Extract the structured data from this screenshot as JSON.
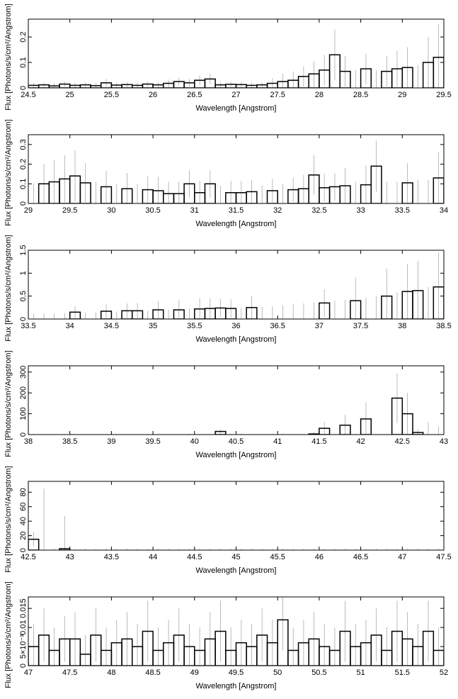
{
  "chart_data": [
    {
      "type": "histogram",
      "xlabel": "Wavelength [Angstrom]",
      "ylabel": "Flux [Photons/s/cm²/Angstrom]",
      "xlim": [
        24.5,
        29.5
      ],
      "xticks": [
        24.5,
        25,
        25.5,
        26,
        26.5,
        27,
        27.5,
        28,
        28.5,
        29,
        29.5
      ],
      "ylim": [
        0,
        0.27
      ],
      "yticks": [
        0,
        0.1,
        0.2
      ],
      "bins": [
        24.5,
        24.625,
        24.75,
        24.875,
        25,
        25.125,
        25.25,
        25.375,
        25.5,
        25.625,
        25.75,
        25.875,
        26,
        26.125,
        26.25,
        26.375,
        26.5,
        26.625,
        26.75,
        26.875,
        27,
        27.125,
        27.25,
        27.375,
        27.5,
        27.625,
        27.75,
        27.875,
        28,
        28.125,
        28.25,
        28.375,
        28.5,
        28.625,
        28.75,
        28.875,
        29,
        29.125,
        29.25,
        29.375,
        29.5
      ],
      "values": [
        0.01,
        0.012,
        0.008,
        0.015,
        0.01,
        0.012,
        0.009,
        0.02,
        0.011,
        0.013,
        0.01,
        0.015,
        0.012,
        0.018,
        0.025,
        0.02,
        0.03,
        0.035,
        0.012,
        0.014,
        0.013,
        0.01,
        0.012,
        0.018,
        0.025,
        0.03,
        0.045,
        0.055,
        0.07,
        0.13,
        0.065,
        0,
        0.075,
        0,
        0.065,
        0.075,
        0.08,
        0,
        0.1,
        0.12
      ],
      "errors": [
        0.01,
        0.01,
        0.01,
        0.01,
        0.01,
        0.01,
        0.01,
        0.015,
        0.01,
        0.01,
        0.01,
        0.01,
        0.01,
        0.015,
        0.015,
        0.015,
        0.02,
        0.02,
        0.01,
        0.01,
        0.01,
        0.01,
        0.01,
        0.02,
        0.03,
        0.035,
        0.04,
        0.05,
        0.06,
        0.1,
        0.06,
        0.07,
        0.06,
        0.07,
        0.06,
        0.07,
        0.08,
        0.09,
        0.1,
        0.13
      ],
      "color": "#000000",
      "error_color": "#aaaaaa"
    },
    {
      "type": "histogram",
      "xlabel": "Wavelength [Angstrom]",
      "ylabel": "Flux [Photons/s/cm²/Angstrom]",
      "xlim": [
        29,
        34
      ],
      "xticks": [
        29,
        29.5,
        30,
        30.5,
        31,
        31.5,
        32,
        32.5,
        33,
        33.5,
        34
      ],
      "ylim": [
        0,
        0.35
      ],
      "yticks": [
        0,
        0.1,
        0.2,
        0.3
      ],
      "bins": [
        29,
        29.125,
        29.25,
        29.375,
        29.5,
        29.625,
        29.75,
        29.875,
        30,
        30.125,
        30.25,
        30.375,
        30.5,
        30.625,
        30.75,
        30.875,
        31,
        31.125,
        31.25,
        31.375,
        31.5,
        31.625,
        31.75,
        31.875,
        32,
        32.125,
        32.25,
        32.375,
        32.5,
        32.625,
        32.75,
        32.875,
        33,
        33.125,
        33.25,
        33.375,
        33.5,
        33.625,
        33.75,
        33.875,
        34
      ],
      "values": [
        0,
        0.1,
        0.11,
        0.125,
        0.14,
        0.105,
        0,
        0.085,
        0,
        0.075,
        0,
        0.07,
        0.065,
        0.05,
        0.05,
        0.1,
        0.055,
        0.1,
        0,
        0.055,
        0.055,
        0.06,
        0,
        0.065,
        0,
        0.07,
        0.075,
        0.145,
        0.08,
        0.085,
        0.09,
        0,
        0.095,
        0.19,
        0,
        0,
        0.105,
        0,
        0,
        0.13
      ],
      "errors": [
        0.1,
        0.1,
        0.11,
        0.12,
        0.13,
        0.1,
        0.11,
        0.08,
        0.1,
        0.08,
        0.1,
        0.07,
        0.07,
        0.06,
        0.06,
        0.07,
        0.06,
        0.07,
        0.09,
        0.06,
        0.06,
        0.06,
        0.09,
        0.06,
        0.1,
        0.06,
        0.07,
        0.1,
        0.07,
        0.07,
        0.09,
        0.11,
        0.1,
        0.13,
        0.11,
        0.11,
        0.1,
        0.12,
        0.12,
        0.13
      ],
      "color": "#000000",
      "error_color": "#aaaaaa"
    },
    {
      "type": "histogram",
      "xlabel": "Wavelength [Angstrom]",
      "ylabel": "Flux [Photons/s/cm²/Angstrom]",
      "xlim": [
        33.5,
        38.5
      ],
      "xticks": [
        33.5,
        34,
        34.5,
        35,
        35.5,
        36,
        36.5,
        37,
        37.5,
        38,
        38.5
      ],
      "ylim": [
        0,
        1.5
      ],
      "yticks": [
        0,
        0.5,
        1,
        1.5
      ],
      "bins": [
        33.5,
        33.625,
        33.75,
        33.875,
        34,
        34.125,
        34.25,
        34.375,
        34.5,
        34.625,
        34.75,
        34.875,
        35,
        35.125,
        35.25,
        35.375,
        35.5,
        35.625,
        35.75,
        35.875,
        36,
        36.125,
        36.25,
        36.375,
        36.5,
        36.625,
        36.75,
        36.875,
        37,
        37.125,
        37.25,
        37.375,
        37.5,
        37.625,
        37.75,
        37.875,
        38,
        38.125,
        38.25,
        38.375,
        38.5
      ],
      "values": [
        0,
        0,
        0,
        0,
        0.15,
        0,
        0,
        0.17,
        0,
        0.18,
        0.18,
        0,
        0.2,
        0,
        0.2,
        0,
        0.22,
        0.23,
        0.24,
        0.23,
        0,
        0.25,
        0,
        0,
        0,
        0,
        0,
        0,
        0.35,
        0,
        0,
        0.4,
        0,
        0,
        0.5,
        0,
        0.6,
        0.62,
        0,
        0.7
      ],
      "errors": [
        0.12,
        0.12,
        0.12,
        0.13,
        0.13,
        0.14,
        0.15,
        0.15,
        0.16,
        0.16,
        0.17,
        0.18,
        0.19,
        0.2,
        0.22,
        0.23,
        0.24,
        0.22,
        0.2,
        0.2,
        0.25,
        0.26,
        0.27,
        0.28,
        0.3,
        0.32,
        0.34,
        0.36,
        0.3,
        0.4,
        0.42,
        0.5,
        0.46,
        0.5,
        0.6,
        0.58,
        0.6,
        0.65,
        0.7,
        0.75
      ],
      "color": "#000000",
      "error_color": "#aaaaaa"
    },
    {
      "type": "histogram",
      "xlabel": "Wavelength [Angstrom]",
      "ylabel": "Flux [Photons/s/cm²/Angstrom]",
      "xlim": [
        38,
        43
      ],
      "xticks": [
        38,
        38.5,
        39,
        39.5,
        40,
        40.5,
        41,
        41.5,
        42,
        42.5,
        43
      ],
      "ylim": [
        0,
        330
      ],
      "yticks": [
        0,
        100,
        200,
        300
      ],
      "bins": [
        38,
        38.125,
        38.25,
        38.375,
        38.5,
        38.625,
        38.75,
        38.875,
        39,
        39.125,
        39.25,
        39.375,
        39.5,
        39.625,
        39.75,
        39.875,
        40,
        40.125,
        40.25,
        40.375,
        40.5,
        40.625,
        40.75,
        40.875,
        41,
        41.125,
        41.25,
        41.375,
        41.5,
        41.625,
        41.75,
        41.875,
        42,
        42.125,
        42.25,
        42.375,
        42.5,
        42.625,
        42.75,
        42.875,
        43
      ],
      "values": [
        0,
        0,
        0,
        0,
        0,
        0,
        0,
        0,
        0,
        0,
        0,
        0,
        0,
        0,
        0,
        0,
        0,
        0,
        15,
        0,
        0,
        0,
        0,
        0,
        0,
        0,
        0,
        3,
        30,
        0,
        45,
        0,
        75,
        0,
        0,
        175,
        100,
        10,
        0,
        0
      ],
      "errors": [
        3,
        3,
        3,
        3,
        3,
        3,
        3,
        3,
        3,
        3,
        3,
        3,
        3,
        3,
        3,
        3,
        3,
        3,
        10,
        3,
        3,
        3,
        3,
        3,
        3,
        3,
        3,
        10,
        30,
        3,
        50,
        3,
        80,
        3,
        3,
        120,
        100,
        15,
        60,
        40
      ],
      "color": "#000000",
      "error_color": "#aaaaaa"
    },
    {
      "type": "histogram",
      "xlabel": "Wavelength [Angstrom]",
      "ylabel": "Flux [Photons/s/cm²/Angstrom]",
      "xlim": [
        42.5,
        47.5
      ],
      "xticks": [
        42.5,
        43,
        43.5,
        44,
        44.5,
        45,
        45.5,
        46,
        46.5,
        47,
        47.5
      ],
      "ylim": [
        0,
        95
      ],
      "yticks": [
        0,
        20,
        40,
        60,
        80
      ],
      "bins": [
        42.5,
        42.625,
        42.75,
        42.875,
        43,
        43.125,
        43.25,
        43.375,
        43.5,
        43.625,
        43.75,
        43.875,
        44,
        44.125,
        44.25,
        44.375,
        44.5,
        44.625,
        44.75,
        44.875,
        45,
        45.125,
        45.25,
        45.375,
        45.5,
        45.625,
        45.75,
        45.875,
        46,
        46.125,
        46.25,
        46.375,
        46.5,
        46.625,
        46.75,
        46.875,
        47,
        47.125,
        47.25,
        47.375,
        47.5
      ],
      "values": [
        15,
        0,
        0,
        2,
        0,
        0,
        0,
        0,
        0,
        0,
        0,
        0,
        0,
        0,
        0,
        0,
        0,
        0,
        0,
        0,
        0,
        0,
        0,
        0,
        0,
        0,
        0,
        0,
        0,
        0,
        0,
        0,
        0,
        0,
        0,
        0,
        0,
        0,
        0,
        0
      ],
      "errors": [
        10,
        85,
        2,
        45,
        2,
        2,
        2,
        2,
        2,
        2,
        2,
        2,
        2,
        2,
        2,
        2,
        2,
        2,
        2,
        2,
        2,
        2,
        2,
        2,
        2,
        2,
        2,
        2,
        2,
        2,
        2,
        2,
        2,
        2,
        2,
        2,
        2,
        2,
        2,
        2
      ],
      "color": "#000000",
      "error_color": "#aaaaaa"
    },
    {
      "type": "histogram",
      "xlabel": "Wavelength [Angstrom]",
      "ylabel": "Flux [Photons/s/cm²/Angstrom]",
      "xlim": [
        47,
        52
      ],
      "xticks": [
        47,
        47.5,
        48,
        48.5,
        49,
        49.5,
        50,
        50.5,
        51,
        51.5,
        52
      ],
      "ylim": [
        0,
        0.018
      ],
      "yticks": [
        0,
        {
          "value": 0.005,
          "label": "5×10⁻³"
        },
        0.01,
        0.015
      ],
      "bins": [
        47,
        47.125,
        47.25,
        47.375,
        47.5,
        47.625,
        47.75,
        47.875,
        48,
        48.125,
        48.25,
        48.375,
        48.5,
        48.625,
        48.75,
        48.875,
        49,
        49.125,
        49.25,
        49.375,
        49.5,
        49.625,
        49.75,
        49.875,
        50,
        50.125,
        50.25,
        50.375,
        50.5,
        50.625,
        50.75,
        50.875,
        51,
        51.125,
        51.25,
        51.375,
        51.5,
        51.625,
        51.75,
        51.875,
        52
      ],
      "values": [
        0.005,
        0.008,
        0.004,
        0.007,
        0.007,
        0.003,
        0.008,
        0.004,
        0.006,
        0.007,
        0.005,
        0.009,
        0.004,
        0.006,
        0.008,
        0.005,
        0.004,
        0.007,
        0.009,
        0.004,
        0.006,
        0.005,
        0.008,
        0.006,
        0.012,
        0.004,
        0.006,
        0.007,
        0.005,
        0.004,
        0.009,
        0.005,
        0.006,
        0.008,
        0.004,
        0.009,
        0.007,
        0.005,
        0.009,
        0.004
      ],
      "errors": [
        0.006,
        0.007,
        0.006,
        0.006,
        0.007,
        0.005,
        0.007,
        0.006,
        0.006,
        0.007,
        0.006,
        0.008,
        0.006,
        0.006,
        0.007,
        0.006,
        0.006,
        0.007,
        0.008,
        0.006,
        0.006,
        0.006,
        0.007,
        0.006,
        0.008,
        0.006,
        0.006,
        0.007,
        0.006,
        0.006,
        0.008,
        0.006,
        0.006,
        0.007,
        0.006,
        0.008,
        0.007,
        0.006,
        0.008,
        0.006
      ],
      "color": "#000000",
      "error_color": "#aaaaaa"
    }
  ]
}
